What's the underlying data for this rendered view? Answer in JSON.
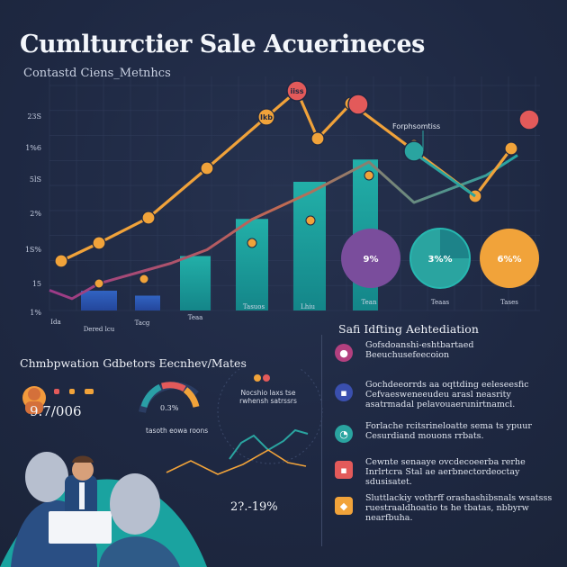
{
  "header": {
    "title": "Cumlturctier Sale Acuerineces",
    "subtitle": "Contastd Ciens_Metnhcs"
  },
  "colors": {
    "background": "#1f2a44",
    "bar_blue": "#2f57b5",
    "bar_teal": "#1fa3a0",
    "orange_line": "#f0a23a",
    "magenta_line": "#b3407f",
    "purple": "#7a4d9c",
    "teal": "#2aa4a0",
    "amber": "#f1a33a",
    "coral": "#e35a5a"
  },
  "chart_data": {
    "type": "bar",
    "title": "Cumlturctier Sale Acuerineces",
    "subtitle": "Contastd Ciens_Metnhcs",
    "y_tick_labels": [
      "23S",
      "1%6",
      "5lS",
      "2%",
      "1S%",
      "15",
      "1%"
    ],
    "x_tick_labels": [
      "Ida",
      "Dered lcu",
      "Tacg",
      "Teaa",
      "Tasuos",
      "Lhiu",
      "Tean",
      "Teaas",
      "Tases"
    ],
    "bars": {
      "values": [
        8,
        6,
        22,
        37,
        52,
        61,
        45
      ],
      "colors": [
        "#2f57b5",
        "#2f5fa8",
        "#1fa3a0",
        "#18a8a2",
        "#1aa6a0",
        "#1a9fa0",
        "#1da09d"
      ]
    },
    "line_orange": {
      "values": [
        20,
        26,
        40,
        50,
        74,
        90,
        100,
        83,
        100,
        63
      ],
      "marker_labels": [
        "",
        "",
        "",
        "",
        "",
        "iiss",
        "Ikb",
        "",
        "",
        ""
      ]
    },
    "line_magenta": {
      "values": [
        12,
        7,
        16,
        22,
        28,
        36,
        54,
        70,
        88,
        64,
        72,
        80,
        92
      ]
    },
    "annotation": "Forphsomtiss",
    "donuts": [
      {
        "label": "9%",
        "value": 9,
        "color": "#7a4d9c"
      },
      {
        "label": "3%%",
        "value": 30,
        "color": "#2aa4a0"
      },
      {
        "label": "6%%",
        "value": 60,
        "color": "#f1a33a"
      }
    ]
  },
  "comparison": {
    "title": "Chmbpwation Gdbetors Eecnhev/Mates",
    "people_value": "9.7/006",
    "gauge_value": "0.3%",
    "gauge_caption": "tasoth eowa roons",
    "sparkline_caption": "Nocshio laxs tse rwhensh satrssrs",
    "sparkline": {
      "values": [
        40,
        22,
        14,
        30,
        20,
        8,
        12
      ]
    },
    "bottom_line": {
      "values": [
        5,
        18,
        3,
        14,
        30,
        16,
        12
      ]
    },
    "footer_value": "2?.-19%"
  },
  "right_panel": {
    "title": "Safi Idfting Aehtediation",
    "items": [
      {
        "icon": "person-icon",
        "text": "Gofsdoanshi-eshtbartaed Beeuchusefeecoion"
      },
      {
        "icon": "doc-icon",
        "text": "Gochdeeorrds aa oqttding eeleseesfic Cefvaesweneeudeu arasl neasrity asatrmadal pelavouaerunirtnamcl."
      },
      {
        "icon": "chart-icon",
        "text": "Forlache rcitsrineloatte sema ts ypuur Cesurdiand mouons rrbats."
      },
      {
        "icon": "doc-icon",
        "text": "Cewnte senaaye ovcdecoeerba rerhe Inrlrtcra Stal ae aerbnectordeoctay sdusisatet."
      },
      {
        "icon": "tag-icon",
        "text": "Sluttlackiy vothrff orashashibsnals wsatsss ruestraaldhoatio ts he tbatas, nbbyrw nearfbuha."
      }
    ]
  }
}
